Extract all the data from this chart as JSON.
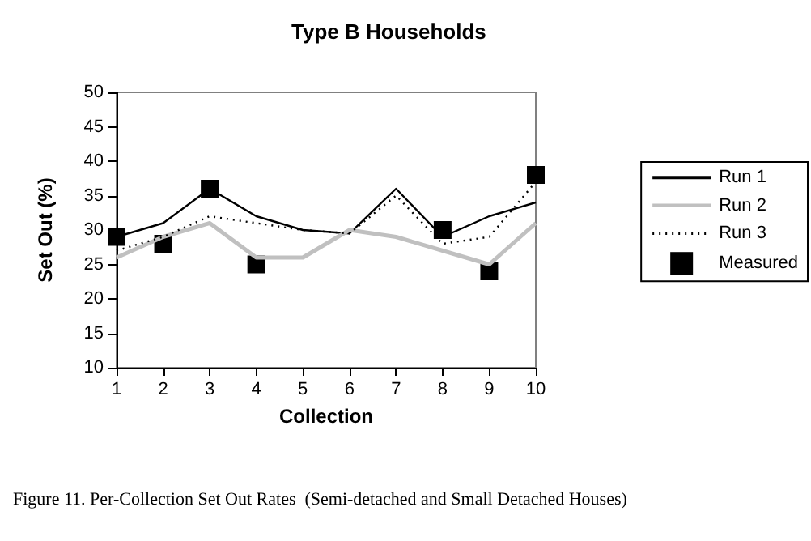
{
  "chart_data": {
    "type": "line",
    "title": "Type B Households",
    "xlabel": "Collection",
    "ylabel": "Set Out (%)",
    "categories": [
      "1",
      "2",
      "3",
      "4",
      "5",
      "6",
      "7",
      "8",
      "9",
      "10"
    ],
    "series": [
      {
        "name": "Run 1",
        "color": "#000000",
        "values": [
          29,
          31,
          36,
          32,
          30,
          29.5,
          36,
          29,
          32,
          34
        ]
      },
      {
        "name": "Run 2",
        "color": "#c0c0c0",
        "values": [
          26,
          29,
          31,
          26,
          26,
          30,
          29,
          27,
          25,
          31
        ]
      },
      {
        "name": "Run 3",
        "color": "#000000",
        "line_style": "dotted",
        "values": [
          27,
          29,
          32,
          31,
          30,
          29.5,
          35,
          28,
          29,
          37
        ]
      },
      {
        "name": "Measured",
        "type": "scatter",
        "marker": "square",
        "color": "#000000",
        "values": [
          29,
          28,
          36,
          25,
          null,
          null,
          null,
          30,
          24,
          38
        ]
      }
    ],
    "ylim": [
      10,
      50
    ],
    "yticks": [
      10,
      15,
      20,
      25,
      30,
      35,
      40,
      45,
      50
    ],
    "grid": false,
    "legend": "right",
    "marker": "none",
    "line_style": "solid",
    "annotations": [
      "Figure 11. Per-Collection Set Out Rates  (Semi-detached and Small Detached Houses)"
    ]
  }
}
